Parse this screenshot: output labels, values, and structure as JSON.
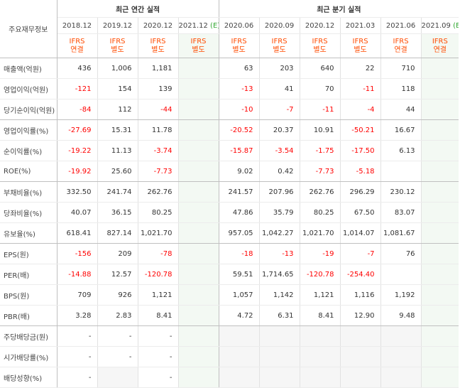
{
  "table": {
    "corner_label": "주요재무정보",
    "annual_header": "최근 연간 실적",
    "quarter_header": "최근 분기 실적",
    "annual_periods": [
      "2018.12",
      "2019.12",
      "2020.12",
      "2021.12"
    ],
    "annual_est_mark": "(E)",
    "quarter_periods": [
      "2020.06",
      "2020.09",
      "2020.12",
      "2021.03",
      "2021.06",
      "2021.09"
    ],
    "quarter_est_mark": "(E)",
    "annual_ifrs": [
      [
        "IFRS",
        "연결"
      ],
      [
        "IFRS",
        "별도"
      ],
      [
        "IFRS",
        "별도"
      ],
      [
        "IFRS",
        "별도"
      ]
    ],
    "quarter_ifrs": [
      [
        "IFRS",
        "별도"
      ],
      [
        "IFRS",
        "별도"
      ],
      [
        "IFRS",
        "별도"
      ],
      [
        "IFRS",
        "별도"
      ],
      [
        "IFRS",
        "연결"
      ],
      [
        "IFRS",
        "연결"
      ]
    ],
    "rows": [
      {
        "label": "매출액(억원)",
        "annual": [
          "436",
          "1,006",
          "1,181",
          ""
        ],
        "quarter": [
          "63",
          "203",
          "640",
          "22",
          "710",
          ""
        ]
      },
      {
        "label": "영업이익(억원)",
        "annual": [
          "-121",
          "154",
          "139",
          ""
        ],
        "quarter": [
          "-13",
          "41",
          "70",
          "-11",
          "118",
          ""
        ]
      },
      {
        "label": "당기순이익(억원)",
        "annual": [
          "-84",
          "112",
          "-44",
          ""
        ],
        "quarter": [
          "-10",
          "-7",
          "-11",
          "-4",
          "44",
          ""
        ]
      },
      {
        "label": "영업이익률(%)",
        "annual": [
          "-27.69",
          "15.31",
          "11.78",
          ""
        ],
        "quarter": [
          "-20.52",
          "20.37",
          "10.91",
          "-50.21",
          "16.67",
          ""
        ]
      },
      {
        "label": "순이익률(%)",
        "annual": [
          "-19.22",
          "11.13",
          "-3.74",
          ""
        ],
        "quarter": [
          "-15.87",
          "-3.54",
          "-1.75",
          "-17.50",
          "6.13",
          ""
        ]
      },
      {
        "label": "ROE(%)",
        "annual": [
          "-19.92",
          "25.60",
          "-7.73",
          ""
        ],
        "quarter": [
          "9.02",
          "0.42",
          "-7.73",
          "-5.18",
          "",
          ""
        ]
      },
      {
        "label": "부채비율(%)",
        "annual": [
          "332.50",
          "241.74",
          "262.76",
          ""
        ],
        "quarter": [
          "241.57",
          "207.96",
          "262.76",
          "296.29",
          "230.12",
          ""
        ]
      },
      {
        "label": "당좌비율(%)",
        "annual": [
          "40.07",
          "36.15",
          "80.25",
          ""
        ],
        "quarter": [
          "47.86",
          "35.79",
          "80.25",
          "67.50",
          "83.07",
          ""
        ]
      },
      {
        "label": "유보율(%)",
        "annual": [
          "618.41",
          "827.14",
          "1,021.70",
          ""
        ],
        "quarter": [
          "957.05",
          "1,042.27",
          "1,021.70",
          "1,014.07",
          "1,081.67",
          ""
        ]
      },
      {
        "label": "EPS(원)",
        "annual": [
          "-156",
          "209",
          "-78",
          ""
        ],
        "quarter": [
          "-18",
          "-13",
          "-19",
          "-7",
          "76",
          ""
        ]
      },
      {
        "label": "PER(배)",
        "annual": [
          "-14.88",
          "12.57",
          "-120.78",
          ""
        ],
        "quarter": [
          "59.51",
          "1,714.65",
          "-120.78",
          "-254.40",
          "",
          ""
        ]
      },
      {
        "label": "BPS(원)",
        "annual": [
          "709",
          "926",
          "1,121",
          ""
        ],
        "quarter": [
          "1,057",
          "1,142",
          "1,121",
          "1,116",
          "1,192",
          ""
        ]
      },
      {
        "label": "PBR(배)",
        "annual": [
          "3.28",
          "2.83",
          "8.41",
          ""
        ],
        "quarter": [
          "4.72",
          "6.31",
          "8.41",
          "12.90",
          "9.48",
          ""
        ]
      },
      {
        "label": "주당배당금(원)",
        "annual": [
          "-",
          "-",
          "-",
          ""
        ],
        "quarter": [
          "",
          "",
          "",
          "",
          "",
          ""
        ]
      },
      {
        "label": "시가배당률(%)",
        "annual": [
          "-",
          "-",
          "-",
          ""
        ],
        "quarter": [
          "",
          "",
          "",
          "",
          "",
          ""
        ]
      },
      {
        "label": "배당성향(%)",
        "annual": [
          "-",
          "",
          "-",
          ""
        ],
        "quarter": [
          "",
          "",
          "",
          "",
          "",
          ""
        ]
      }
    ]
  }
}
